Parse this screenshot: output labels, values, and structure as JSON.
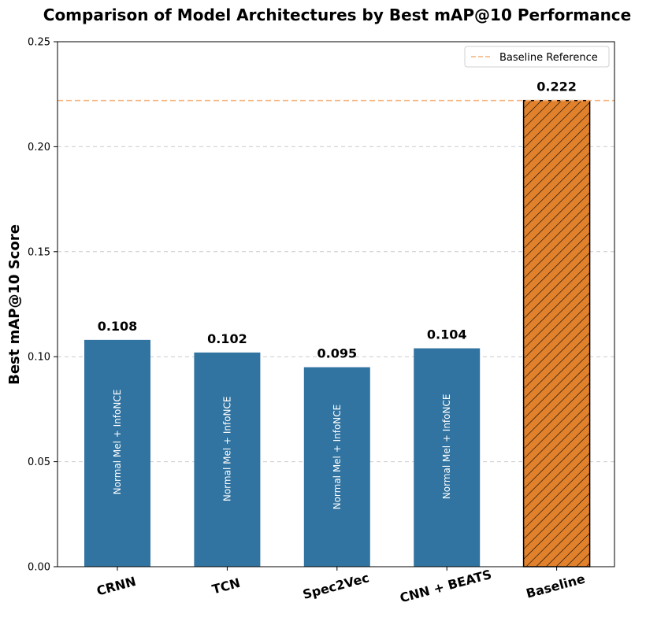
{
  "chart_data": {
    "type": "bar",
    "title": "Comparison of Model Architectures by Best mAP@10 Performance",
    "xlabel": "",
    "ylabel": "Best mAP@10 Score",
    "ylim": [
      0,
      0.25
    ],
    "yticks": [
      "0.00",
      "0.05",
      "0.10",
      "0.15",
      "0.20",
      "0.25"
    ],
    "grid": "y dashed",
    "legend_position": "top-right",
    "categories": [
      "CRNN",
      "TCN",
      "Spec2Vec",
      "CNN + BEATS",
      "Baseline"
    ],
    "values": [
      0.108,
      0.102,
      0.095,
      0.104,
      0.222
    ],
    "value_labels": [
      "0.108",
      "0.102",
      "0.095",
      "0.104",
      "0.222"
    ],
    "bar_annotations": [
      "Normal Mel + InfoNCE",
      "Normal Mel + InfoNCE",
      "Normal Mel + InfoNCE",
      "Normal Mel + InfoNCE",
      ""
    ],
    "reference_line": {
      "value": 0.222,
      "label": "Baseline Reference",
      "style": "dashed"
    },
    "colors": {
      "model_bar": "#3274a1",
      "baseline_bar": "#e1812c",
      "reference_line": "#f4b07a",
      "grid": "#cccccc"
    }
  }
}
